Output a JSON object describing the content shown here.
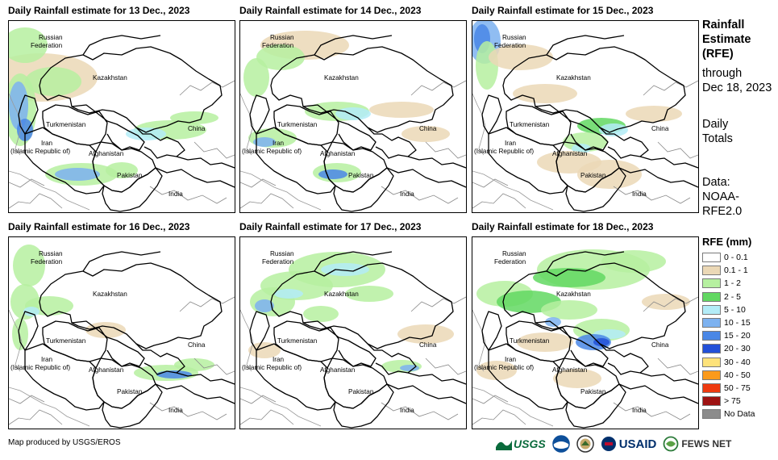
{
  "panels": [
    {
      "title": "Daily Rainfall estimate for 13 Dec., 2023",
      "day": "13"
    },
    {
      "title": "Daily Rainfall estimate for 14 Dec., 2023",
      "day": "14"
    },
    {
      "title": "Daily Rainfall estimate for 15 Dec., 2023",
      "day": "15"
    },
    {
      "title": "Daily Rainfall estimate for 16 Dec., 2023",
      "day": "16"
    },
    {
      "title": "Daily Rainfall estimate for 17 Dec., 2023",
      "day": "17"
    },
    {
      "title": "Daily Rainfall estimate for 18 Dec., 2023",
      "day": "18"
    }
  ],
  "map_labels": {
    "russia_1": "Russian",
    "russia_2": "Federation",
    "kazakhstan": "Kazakhstan",
    "turkmenistan": "Turkmenistan",
    "iran_1": "Iran",
    "iran_2": "(Islamic Republic of)",
    "afghanistan": "Afghanistan",
    "pakistan": "Pakistan",
    "china": "China",
    "india": "India"
  },
  "sidebar": {
    "title_line1": "Rainfall",
    "title_line2": "Estimate",
    "title_line3": "(RFE)",
    "through": "through",
    "through_date": "Dec 18, 2023",
    "daily1": "Daily",
    "daily2": "Totals",
    "data1": "Data:",
    "data2": "NOAA-",
    "data3": "RFE2.0"
  },
  "legend": {
    "title": "RFE (mm)",
    "items": [
      {
        "label": "0 - 0.1",
        "color": "#ffffff"
      },
      {
        "label": "0.1 - 1",
        "color": "#ebd8b6"
      },
      {
        "label": "1 - 2",
        "color": "#b6f0a0"
      },
      {
        "label": "2 - 5",
        "color": "#62d862"
      },
      {
        "label": "5 - 10",
        "color": "#b3ecf7"
      },
      {
        "label": "10 - 15",
        "color": "#7db2f0"
      },
      {
        "label": "15 - 20",
        "color": "#4a87e6"
      },
      {
        "label": "20 - 30",
        "color": "#2250d8"
      },
      {
        "label": "30 - 40",
        "color": "#fde27a"
      },
      {
        "label": "40 - 50",
        "color": "#fb9a1b"
      },
      {
        "label": "50 - 75",
        "color": "#ee3a10"
      },
      {
        "label": "> 75",
        "color": "#9e1212"
      },
      {
        "label": "No Data",
        "color": "#8c8c8c"
      }
    ]
  },
  "credit": "Map produced by USGS/EROS",
  "logos": {
    "usgs": "USGS",
    "usaid": "USAID",
    "fewsnet": "FEWS NET"
  }
}
